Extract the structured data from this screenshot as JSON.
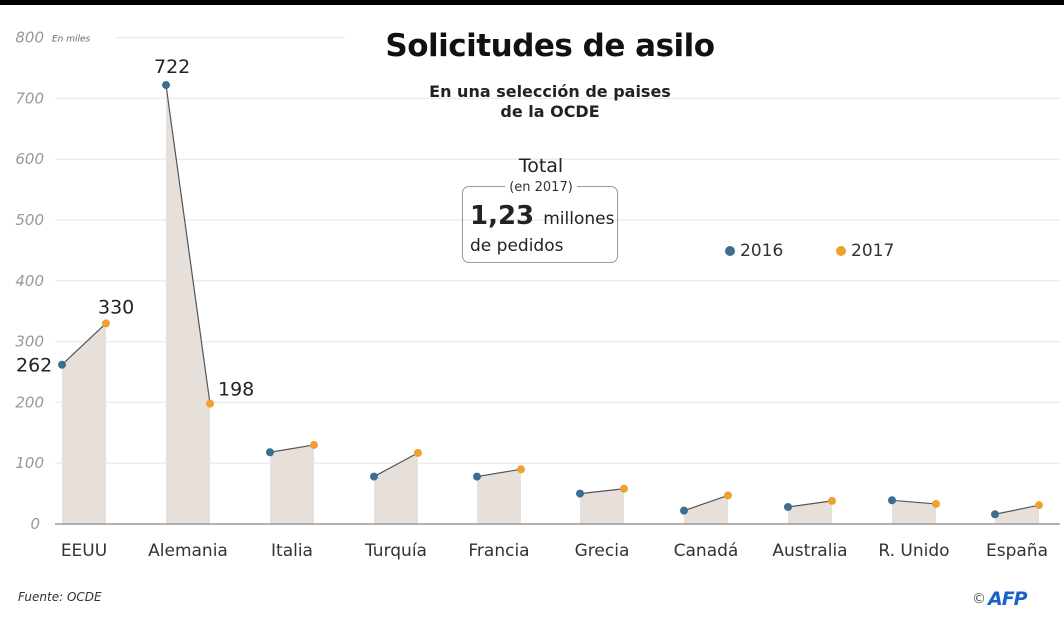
{
  "header": {
    "title": "Solicitudes de asilo",
    "subtitle_line1": "En una selección de paises",
    "subtitle_line2": "de la OCDE"
  },
  "total_box": {
    "heading": "Total",
    "subheading": "(en 2017)",
    "value": "1,23",
    "value_unit": "millones",
    "line2": "de pedidos"
  },
  "legend": {
    "items": [
      {
        "label": "2016",
        "color": "#3d6e8f"
      },
      {
        "label": "2017",
        "color": "#f0a030"
      }
    ]
  },
  "footer": {
    "source": "Fuente: OCDE",
    "copyright": "©",
    "credit": "AFP"
  },
  "colors": {
    "bar_fill": "#e6dfda",
    "grid": "#ececec",
    "baseline": "#999999",
    "connector": "#555555",
    "series_2016": "#3d6e8f",
    "series_2017": "#f0a030"
  },
  "chart_data": {
    "type": "line",
    "title": "Solicitudes de asilo",
    "subtitle": "En una selección de paises de la OCDE",
    "xlabel": "",
    "ylabel": "En miles",
    "ylim": [
      0,
      800
    ],
    "yticks": [
      0,
      100,
      200,
      300,
      400,
      500,
      600,
      700,
      800
    ],
    "grid": true,
    "legend_position": "upper right",
    "categories": [
      "EEUU",
      "Alemania",
      "Italia",
      "Turquía",
      "Francia",
      "Grecia",
      "Canadá",
      "Australia",
      "R. Unido",
      "España"
    ],
    "series": [
      {
        "name": "2016",
        "values": [
          262,
          722,
          118,
          78,
          78,
          50,
          22,
          28,
          39,
          16
        ]
      },
      {
        "name": "2017",
        "values": [
          330,
          198,
          130,
          117,
          90,
          58,
          47,
          38,
          33,
          31
        ]
      }
    ],
    "annotations": [
      {
        "category": "EEUU",
        "series": "2016",
        "text": "262"
      },
      {
        "category": "EEUU",
        "series": "2017",
        "text": "330"
      },
      {
        "category": "Alemania",
        "series": "2016",
        "text": "722"
      },
      {
        "category": "Alemania",
        "series": "2017",
        "text": "198"
      },
      {
        "text": "Total (en 2017) 1,23 millones de pedidos"
      }
    ]
  }
}
